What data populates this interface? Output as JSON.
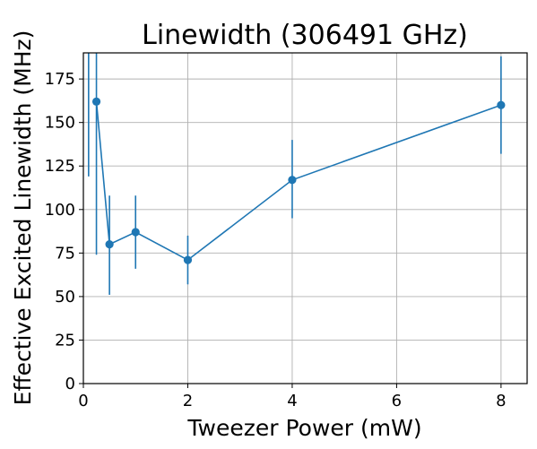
{
  "chart_data": {
    "type": "line",
    "title": "Linewidth (306491 GHz)",
    "xlabel": "Tweezer Power (mW)",
    "ylabel": "Effective Excited Linewidth (MHz)",
    "xlim": [
      0,
      8.5
    ],
    "ylim": [
      0,
      190
    ],
    "xticks": [
      0,
      2,
      4,
      6,
      8
    ],
    "yticks": [
      0,
      25,
      50,
      75,
      100,
      125,
      150,
      175
    ],
    "grid": true,
    "series": [
      {
        "color": "#1f77b4",
        "marker": "circle",
        "points": [
          {
            "x": 0.25,
            "y": 162,
            "err_low": 74,
            "err_high": 190
          },
          {
            "x": 0.5,
            "y": 80,
            "err_low": 51,
            "err_high": 108
          },
          {
            "x": 1.0,
            "y": 87,
            "err_low": 66,
            "err_high": 108
          },
          {
            "x": 2.0,
            "y": 71,
            "err_low": 57,
            "err_high": 85
          },
          {
            "x": 4.0,
            "y": 117,
            "err_low": 95,
            "err_high": 140
          },
          {
            "x": 8.0,
            "y": 160,
            "err_low": 132,
            "err_high": 188
          }
        ]
      }
    ],
    "extra_errorbars": [
      {
        "x": 0.1,
        "err_low": 119,
        "err_high": 190
      }
    ]
  }
}
